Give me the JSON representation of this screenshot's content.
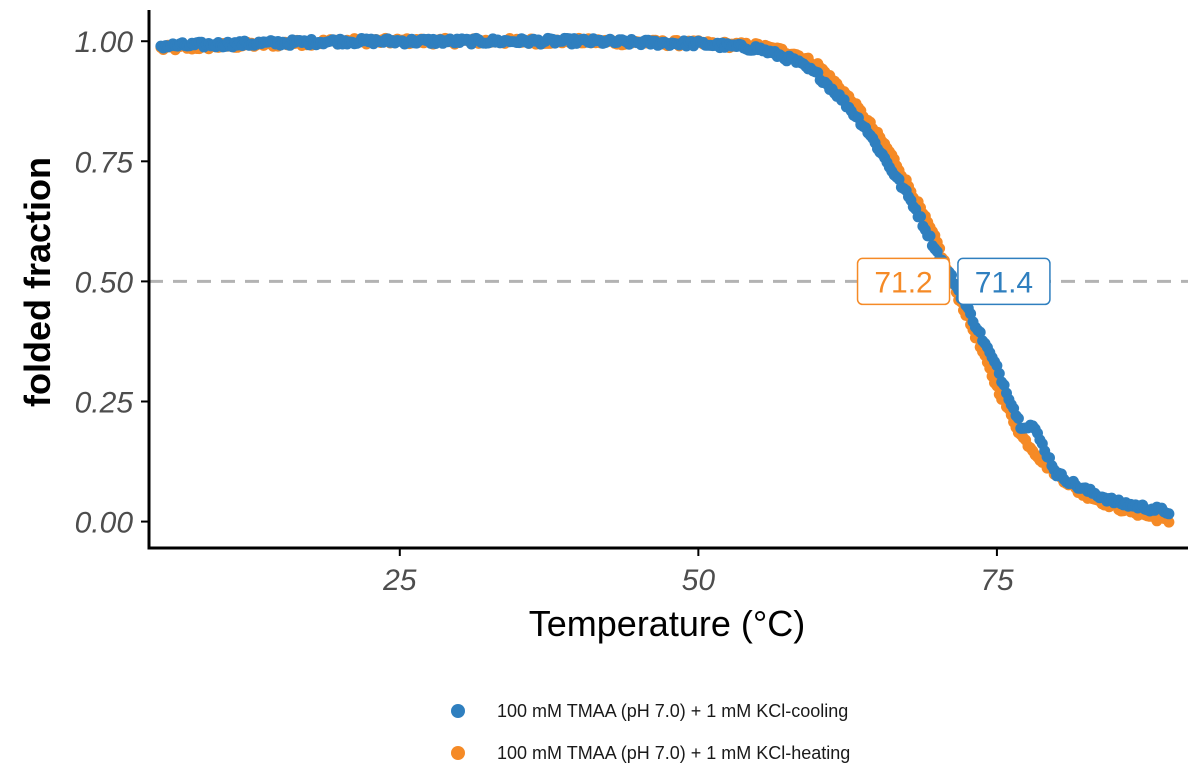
{
  "colors": {
    "cooling": "#2f7fbf",
    "heating": "#f58a26",
    "reference_line": "#b3b3b3",
    "axis": "#000000"
  },
  "chart_data": {
    "type": "scatter",
    "xlabel": "Temperature (°C)",
    "ylabel": "folded fraction",
    "xlim": [
      4,
      91
    ],
    "ylim": [
      -0.055,
      1.065
    ],
    "x_ticks": [
      25,
      50,
      75
    ],
    "x_tick_labels": [
      "25",
      "50",
      "75"
    ],
    "y_ticks": [
      0,
      0.25,
      0.5,
      0.75,
      1
    ],
    "y_tick_labels": [
      "0.00",
      "0.25",
      "0.50",
      "0.75",
      "1.00"
    ],
    "grid": false,
    "reference_line": {
      "y": 0.5,
      "style": "dashed"
    },
    "legend_position": "bottom",
    "series": [
      {
        "name": "100 mM TMAA (pH 7.0) + 1 mM KCl-cooling",
        "color": "#2f7fbf",
        "x_range": [
          5,
          89.5
        ],
        "x_step": 0.2,
        "midpoint": 71.4,
        "points": [
          [
            5,
            0.99
          ],
          [
            20,
            1.0
          ],
          [
            40,
            1.0
          ],
          [
            50,
            0.995
          ],
          [
            55,
            0.985
          ],
          [
            58,
            0.96
          ],
          [
            60,
            0.93
          ],
          [
            62,
            0.88
          ],
          [
            64,
            0.82
          ],
          [
            66,
            0.74
          ],
          [
            68,
            0.66
          ],
          [
            70,
            0.56
          ],
          [
            71.4,
            0.5
          ],
          [
            73,
            0.42
          ],
          [
            75,
            0.32
          ],
          [
            77,
            0.2
          ],
          [
            78,
            0.2
          ],
          [
            80,
            0.1
          ],
          [
            82,
            0.07
          ],
          [
            85,
            0.04
          ],
          [
            89.5,
            0.02
          ]
        ]
      },
      {
        "name": "100 mM TMAA (pH 7.0) + 1 mM KCl-heating",
        "color": "#f58a26",
        "x_range": [
          5,
          89.5
        ],
        "x_step": 0.2,
        "midpoint": 71.2,
        "points": [
          [
            5,
            0.985
          ],
          [
            20,
            1.0
          ],
          [
            40,
            1.0
          ],
          [
            50,
            0.995
          ],
          [
            55,
            0.99
          ],
          [
            58,
            0.975
          ],
          [
            60,
            0.95
          ],
          [
            62,
            0.9
          ],
          [
            64,
            0.84
          ],
          [
            66,
            0.77
          ],
          [
            68,
            0.68
          ],
          [
            70,
            0.58
          ],
          [
            71.2,
            0.5
          ],
          [
            73,
            0.4
          ],
          [
            75,
            0.28
          ],
          [
            77,
            0.18
          ],
          [
            79,
            0.12
          ],
          [
            82,
            0.06
          ],
          [
            85,
            0.03
          ],
          [
            89.5,
            0.0
          ]
        ]
      }
    ],
    "annotations": [
      {
        "text": "71.2",
        "x": 71.2,
        "y": 0.5,
        "series": 1,
        "anchor": "left"
      },
      {
        "text": "71.4",
        "x": 71.4,
        "y": 0.5,
        "series": 0,
        "anchor": "right"
      }
    ]
  }
}
